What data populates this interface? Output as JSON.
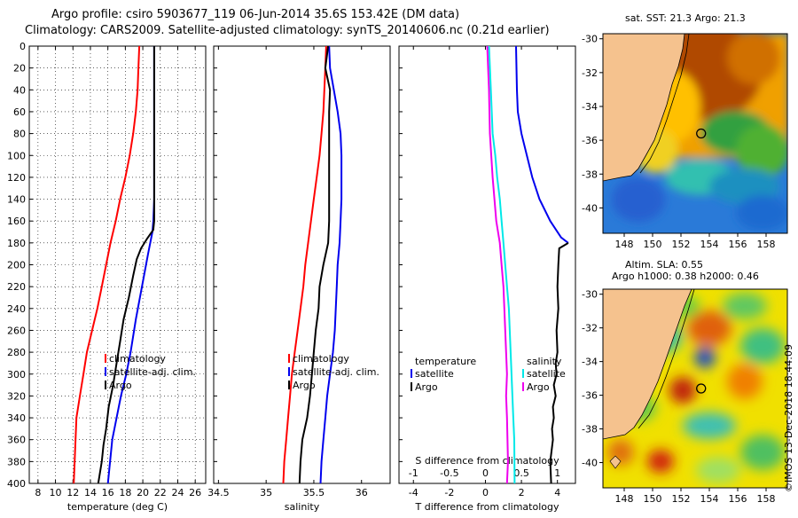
{
  "header": {
    "line1": "Argo profile: csiro 5903677_119 06-Jun-2014 35.6S 153.42E (DM data)",
    "line2": "Climatology: CARS2009. Satellite-adjusted climatology: synTS_20140606.nc (0.21d earlier)"
  },
  "side_label": "©IMOS 13-Dec-2018 18:44:09",
  "colors": {
    "climatology": "#ff0000",
    "satellite": "#0000ee",
    "argo": "#000000",
    "cyan": "#00e8e8",
    "magenta": "#ee00ee",
    "land": "#f5c28e"
  },
  "chart_data": [
    {
      "type": "line",
      "id": "temperature",
      "xlabel": "temperature (deg C)",
      "ylabel": "",
      "xlim": [
        7,
        27.2
      ],
      "ylim": [
        400,
        0
      ],
      "xticks": [
        8,
        10,
        12,
        14,
        16,
        18,
        20,
        22,
        24,
        26
      ],
      "yticks": [
        0,
        20,
        40,
        60,
        80,
        100,
        120,
        140,
        160,
        180,
        200,
        220,
        240,
        260,
        280,
        300,
        320,
        340,
        360,
        380,
        400
      ],
      "grid": true,
      "legend": [
        "climatology",
        "satellite-adj. clim.",
        "Argo"
      ],
      "series": [
        {
          "name": "climatology",
          "color": "#ff0000",
          "x": [
            19.6,
            19.5,
            19.4,
            19.2,
            18.9,
            18.5,
            18.0,
            17.4,
            16.9,
            16.3,
            15.8,
            15.3,
            14.8,
            14.2,
            13.6,
            13.2,
            12.8,
            12.4,
            12.1
          ],
          "y": [
            0,
            20,
            40,
            60,
            80,
            100,
            120,
            140,
            160,
            180,
            200,
            220,
            240,
            260,
            280,
            300,
            320,
            340,
            400
          ]
        },
        {
          "name": "satellite-adj. clim.",
          "color": "#0000ee",
          "x": [
            21.3,
            21.3,
            21.3,
            21.3,
            21.3,
            21.3,
            21.3,
            21.3,
            21.2,
            21.1,
            20.6,
            19.9,
            19.2,
            18.6,
            18.1,
            17.5,
            17.0,
            16.5,
            16.0
          ],
          "y": [
            0,
            20,
            40,
            60,
            80,
            100,
            120,
            140,
            160,
            170,
            190,
            220,
            250,
            280,
            300,
            320,
            340,
            360,
            400
          ]
        },
        {
          "name": "Argo",
          "color": "#000000",
          "x": [
            21.3,
            21.3,
            21.3,
            21.3,
            21.3,
            21.2,
            20.5,
            19.8,
            19.3,
            18.9,
            18.4,
            17.8,
            17.4,
            17.0,
            16.6,
            16.1,
            15.8,
            15.5,
            15.3,
            14.9
          ],
          "y": [
            0,
            40,
            80,
            120,
            160,
            168,
            176,
            185,
            195,
            210,
            230,
            250,
            270,
            290,
            310,
            330,
            350,
            365,
            380,
            400
          ]
        }
      ]
    },
    {
      "type": "line",
      "id": "salinity",
      "xlabel": "salinity",
      "ylabel": "",
      "xlim": [
        34.45,
        36.3
      ],
      "ylim": [
        400,
        0
      ],
      "xticks": [
        34.5,
        35,
        35.5,
        36
      ],
      "xtick_labels": [
        "34.5",
        "35",
        "35.5",
        "36"
      ],
      "grid": false,
      "legend": [
        "climatology",
        "satellite-adj. clim.",
        "Argo"
      ],
      "series": [
        {
          "name": "climatology",
          "color": "#ff0000",
          "x": [
            35.63,
            35.62,
            35.61,
            35.6,
            35.58,
            35.56,
            35.53,
            35.5,
            35.47,
            35.44,
            35.41,
            35.39,
            35.36,
            35.33,
            35.3,
            35.27,
            35.25,
            35.23,
            35.21,
            35.19,
            35.18
          ],
          "y": [
            0,
            20,
            40,
            60,
            80,
            100,
            120,
            140,
            160,
            180,
            200,
            220,
            240,
            260,
            280,
            300,
            320,
            340,
            360,
            380,
            400
          ]
        },
        {
          "name": "satellite-adj. clim.",
          "color": "#0000ee",
          "x": [
            35.66,
            35.67,
            35.71,
            35.75,
            35.78,
            35.79,
            35.79,
            35.79,
            35.78,
            35.77,
            35.75,
            35.74,
            35.73,
            35.72,
            35.7,
            35.67,
            35.64,
            35.62,
            35.6,
            35.58,
            35.57
          ],
          "y": [
            0,
            20,
            40,
            60,
            80,
            100,
            120,
            140,
            160,
            180,
            200,
            220,
            240,
            260,
            280,
            300,
            320,
            340,
            360,
            380,
            400
          ]
        },
        {
          "name": "Argo",
          "color": "#000000",
          "x": [
            35.65,
            35.62,
            35.67,
            35.66,
            35.66,
            35.66,
            35.66,
            35.66,
            35.66,
            35.65,
            35.6,
            35.56,
            35.55,
            35.52,
            35.5,
            35.48,
            35.46,
            35.43,
            35.38,
            35.36,
            35.35
          ],
          "y": [
            0,
            20,
            40,
            60,
            80,
            100,
            120,
            140,
            160,
            180,
            200,
            220,
            240,
            260,
            280,
            300,
            320,
            340,
            360,
            380,
            400
          ]
        }
      ]
    },
    {
      "type": "line",
      "id": "difference",
      "xlabel": "T difference from climatology",
      "xlabel_top": "S difference from climatology",
      "xlim": [
        -4.8,
        5
      ],
      "ylim": [
        400,
        0
      ],
      "xticks": [
        -4,
        -2,
        0,
        2,
        4
      ],
      "xticks_top": [
        -4,
        -2,
        0,
        2,
        4
      ],
      "xtick_top_labels": [
        "-1",
        "-0.5",
        "0",
        "0.5",
        "1"
      ],
      "grid": false,
      "legend_left_title": "temperature",
      "legend_right_title": "salinity",
      "legend": [
        "satellite",
        "Argo"
      ],
      "series": [
        {
          "name": "T satellite",
          "color": "#0000ee",
          "x": [
            1.7,
            1.75,
            1.8,
            2.0,
            2.3,
            2.6,
            3.0,
            3.6,
            4.2,
            4.6
          ],
          "y": [
            0,
            40,
            60,
            80,
            100,
            120,
            140,
            160,
            175,
            180
          ]
        },
        {
          "name": "T Argo",
          "color": "#000000",
          "x": [
            4.6,
            4.1,
            4.05,
            4.0,
            4.05,
            3.95,
            4.0,
            3.9,
            3.95,
            3.8,
            3.9,
            3.75,
            3.8,
            3.7,
            3.75,
            3.6,
            3.65
          ],
          "y": [
            180,
            185,
            200,
            220,
            240,
            260,
            280,
            290,
            300,
            310,
            320,
            330,
            340,
            350,
            360,
            380,
            400
          ]
        },
        {
          "name": "S satellite",
          "color": "#00e8e8",
          "x": [
            0.2,
            0.3,
            0.4,
            0.55,
            0.65,
            0.8,
            0.9,
            1.0,
            1.1,
            1.2,
            1.3,
            1.35,
            1.4,
            1.45,
            1.5,
            1.55,
            1.6,
            1.62
          ],
          "y": [
            0,
            40,
            80,
            100,
            120,
            140,
            160,
            180,
            200,
            220,
            240,
            260,
            280,
            300,
            320,
            340,
            360,
            400
          ]
        },
        {
          "name": "S Argo",
          "color": "#ee00ee",
          "x": [
            0.1,
            0.2,
            0.25,
            0.4,
            0.6,
            0.8,
            0.9,
            1.0,
            1.05,
            1.1,
            1.15,
            1.2,
            1.15,
            1.2,
            1.25,
            1.2
          ],
          "y": [
            0,
            40,
            80,
            120,
            160,
            180,
            200,
            220,
            240,
            260,
            280,
            300,
            320,
            340,
            380,
            400
          ]
        }
      ]
    },
    {
      "type": "heatmap",
      "id": "sst_map",
      "title": "sat. SST: 21.3 Argo: 21.3",
      "xlim": [
        146.5,
        159.5
      ],
      "ylim": [
        -41.5,
        -29.7
      ],
      "xticks": [
        148,
        150,
        152,
        154,
        156,
        158
      ],
      "yticks": [
        -30,
        -32,
        -34,
        -36,
        -38,
        -40
      ],
      "marker": {
        "lon": 153.42,
        "lat": -35.6
      }
    },
    {
      "type": "heatmap",
      "id": "sla_map",
      "title": "Altim. SLA: 0.55",
      "subtitle": "Argo h1000: 0.38 h2000: 0.46",
      "xlim": [
        146.5,
        159.5
      ],
      "ylim": [
        -41.5,
        -29.7
      ],
      "xticks": [
        148,
        150,
        152,
        154,
        156,
        158
      ],
      "yticks": [
        -30,
        -32,
        -34,
        -36,
        -38,
        -40
      ],
      "marker": {
        "lon": 153.42,
        "lat": -35.6
      }
    }
  ]
}
